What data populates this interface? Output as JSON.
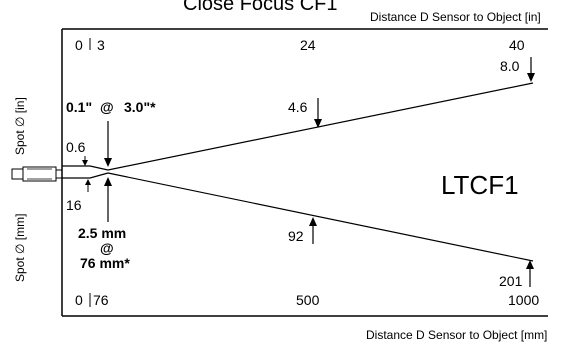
{
  "title": "Close Focus CF1",
  "top_axis_label": "Distance D Sensor to Object [in]",
  "bottom_axis_label": "Distance D Sensor to Object [mm]",
  "left_label_top": "Spot ∅ [in]",
  "left_label_bottom": "Spot ∅ [mm]",
  "model": "LTCF1",
  "top_ticks": [
    "0",
    "3",
    "24",
    "40"
  ],
  "bottom_ticks": [
    "0",
    "76",
    "500",
    "1000"
  ],
  "inch_values": {
    "start": "0.6",
    "mid": "4.6",
    "end": "8.0",
    "focus_spot": "0.1\"",
    "at": "@",
    "focus_dist": "3.0\"*"
  },
  "mm_values": {
    "start": "16",
    "mid": "92",
    "end": "201",
    "focus_spot": "2.5  mm",
    "at": "@",
    "focus_dist": "76  mm*"
  },
  "colors": {
    "lines": "#000000",
    "background": "#ffffff"
  }
}
